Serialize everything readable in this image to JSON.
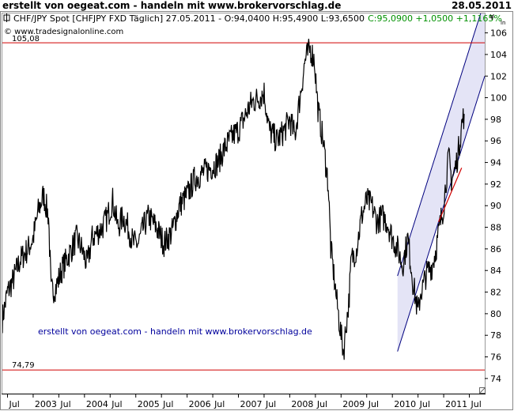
{
  "header": {
    "left": "erstellt von oegeat.com - handeln mit www.brokervorschlag.de",
    "right": "28.05.2011"
  },
  "chart_title": {
    "main": "CHF/JPY Spot [CHFJPY FXD  Täglich] 27.05.2011 - O:94,0400 H:95,4900 L:93,6500",
    "change": "C:95,0900 +1,0500 +1,1165%"
  },
  "source_label": "© www.tradesignalonline.com",
  "watermark": "erstellt von oegeat.com - handeln mit www.brokervorschlag.de",
  "currency_symbol": "¥",
  "colors": {
    "price": "#000000",
    "hline": "#d00000",
    "channel_fill": "#e4e4f6",
    "channel_line": "#00007f",
    "trend_red": "#d00000",
    "change_text": "#009000",
    "watermark": "#00009c"
  },
  "chart_data": {
    "type": "line",
    "title": "CHF/JPY Spot [CHFJPY FXD  Täglich] 27.05.2011",
    "ylim": [
      72.6,
      107.8
    ],
    "xlim": [
      2002.4,
      2011.8
    ],
    "y_ticks": [
      74,
      76,
      78,
      80,
      82,
      84,
      86,
      88,
      90,
      92,
      94,
      96,
      98,
      100,
      102,
      104,
      106
    ],
    "x_ticks": [
      {
        "label": "Jul",
        "x": 2002.5
      },
      {
        "label": "2003",
        "x": 2003.0
      },
      {
        "label": "Jul",
        "x": 2003.5
      },
      {
        "label": "2004",
        "x": 2004.0
      },
      {
        "label": "Jul",
        "x": 2004.5
      },
      {
        "label": "2005",
        "x": 2005.0
      },
      {
        "label": "Jul",
        "x": 2005.5
      },
      {
        "label": "2006",
        "x": 2006.0
      },
      {
        "label": "Jul",
        "x": 2006.5
      },
      {
        "label": "2007",
        "x": 2007.0
      },
      {
        "label": "Jul",
        "x": 2007.5
      },
      {
        "label": "2008",
        "x": 2008.0
      },
      {
        "label": "Jul",
        "x": 2008.5
      },
      {
        "label": "2009",
        "x": 2009.0
      },
      {
        "label": "Jul",
        "x": 2009.5
      },
      {
        "label": "2010",
        "x": 2010.0
      },
      {
        "label": "Jul",
        "x": 2010.5
      },
      {
        "label": "2011",
        "x": 2011.0
      },
      {
        "label": "Jul",
        "x": 2011.5
      }
    ],
    "horizontal_lines": [
      {
        "value": 105.08,
        "label": "105,08"
      },
      {
        "value": 74.79,
        "label": "74,79"
      }
    ],
    "channel": {
      "lower_start": [
        2010.1,
        76.5
      ],
      "lower_end": [
        2011.8,
        102.0
      ],
      "upper_start": [
        2010.1,
        83.5
      ],
      "upper_end": [
        2011.8,
        109.0
      ]
    },
    "red_trend": [
      [
        2010.9,
        88.5
      ],
      [
        2011.35,
        93.5
      ]
    ],
    "series": [
      {
        "x": [
          2002.4,
          2002.5,
          2002.6,
          2002.75,
          2002.9,
          2003.0,
          2003.1,
          2003.2,
          2003.3,
          2003.35,
          2003.45,
          2003.55,
          2003.65,
          2003.75,
          2003.85,
          2003.95,
          2004.05,
          2004.15,
          2004.25,
          2004.35,
          2004.45,
          2004.55,
          2004.65,
          2004.75,
          2004.85,
          2004.95,
          2005.05,
          2005.15,
          2005.25,
          2005.4,
          2005.55,
          2005.7,
          2005.85,
          2006.0,
          2006.15,
          2006.3,
          2006.45,
          2006.6,
          2006.75,
          2006.9,
          2007.0,
          2007.1,
          2007.25,
          2007.4,
          2007.5,
          2007.6,
          2007.75,
          2007.9,
          2008.0,
          2008.1,
          2008.2,
          2008.3,
          2008.4,
          2008.48,
          2008.55,
          2008.65,
          2008.75,
          2008.8,
          2008.85,
          2008.92,
          2009.0,
          2009.05,
          2009.1,
          2009.15,
          2009.2,
          2009.3,
          2009.4,
          2009.5,
          2009.6,
          2009.7,
          2009.8,
          2009.9,
          2010.0,
          2010.1,
          2010.2,
          2010.3,
          2010.4,
          2010.5,
          2010.55,
          2010.6,
          2010.65,
          2010.7,
          2010.78,
          2010.85,
          2010.92,
          2011.0,
          2011.05,
          2011.1,
          2011.15,
          2011.2,
          2011.25,
          2011.3,
          2011.35,
          2011.4
        ],
        "values": [
          79.5,
          82.0,
          83.0,
          85.0,
          86.0,
          87.0,
          89.5,
          91.0,
          89.0,
          82.0,
          82.5,
          84.0,
          85.0,
          86.0,
          87.0,
          86.0,
          84.5,
          87.0,
          87.5,
          88.0,
          89.0,
          90.5,
          88.0,
          89.0,
          88.0,
          86.5,
          86.5,
          88.0,
          89.0,
          88.0,
          86.5,
          87.5,
          90.0,
          91.0,
          92.5,
          93.0,
          93.5,
          94.0,
          95.5,
          96.5,
          97.0,
          98.0,
          99.5,
          100.0,
          100.5,
          97.0,
          96.0,
          97.0,
          98.0,
          96.5,
          100.0,
          103.5,
          104.5,
          103.5,
          99.0,
          96.0,
          92.0,
          86.0,
          84.0,
          81.0,
          78.0,
          76.5,
          79.0,
          81.0,
          85.0,
          86.0,
          89.0,
          90.5,
          90.0,
          88.5,
          89.0,
          88.5,
          87.0,
          86.0,
          84.5,
          87.0,
          83.0,
          80.0,
          82.0,
          82.5,
          83.5,
          84.0,
          84.5,
          86.0,
          88.0,
          90.0,
          92.5,
          94.5,
          92.5,
          93.0,
          94.0,
          95.5,
          97.5,
          98.5
        ]
      }
    ]
  }
}
